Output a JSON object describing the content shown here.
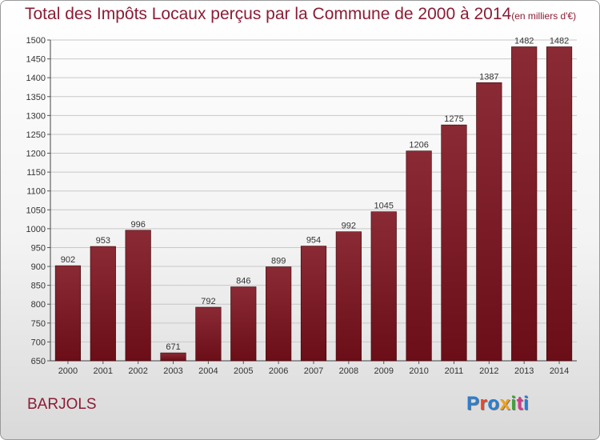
{
  "title": "Total des Impôts Locaux perçus par la Commune de 2000 à 2014",
  "unit_note": "(en milliers d'€)",
  "commune": "BARJOLS",
  "brand": {
    "text": "Proxiti",
    "letter_colors": [
      "#2a7fcf",
      "#e24a2b",
      "#2a7fcf",
      "#f0a21a",
      "#3aa635",
      "#d63a8c",
      "#2a7fcf"
    ]
  },
  "colors": {
    "bar": "#6b0e18",
    "bar_light": "#8a2a34",
    "title": "#8b1c35",
    "grid": "#c8c8c8"
  },
  "chart_data": {
    "type": "bar",
    "title": "Total des Impôts Locaux perçus par la Commune de 2000 à 2014",
    "categories": [
      "2000",
      "2001",
      "2002",
      "2003",
      "2004",
      "2005",
      "2006",
      "2007",
      "2008",
      "2009",
      "2010",
      "2011",
      "2012",
      "2013",
      "2014"
    ],
    "values": [
      902,
      953,
      996,
      671,
      792,
      846,
      899,
      954,
      992,
      1045,
      1206,
      1275,
      1387,
      1482,
      1482
    ],
    "ylim": [
      650,
      1500
    ],
    "yticks": [
      650,
      700,
      750,
      800,
      850,
      900,
      950,
      1000,
      1050,
      1100,
      1150,
      1200,
      1250,
      1300,
      1350,
      1400,
      1450,
      1500
    ],
    "grid": true,
    "data_labels": true
  }
}
